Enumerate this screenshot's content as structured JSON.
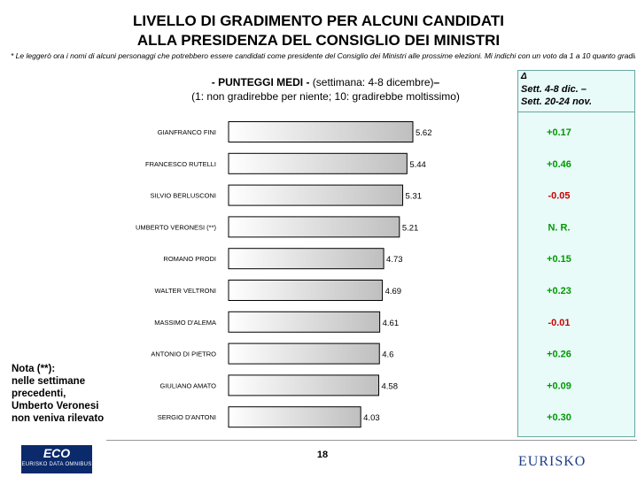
{
  "header": {
    "title_line1": "LIVELLO DI GRADIMENTO PER ALCUNI CANDIDATI",
    "title_line2": "ALLA PRESIDENZA DEL CONSIGLIO DEI MINISTRI",
    "footnote": "* Le leggerò ora i nomi di alcuni personaggi che potrebbero essere candidati come presidente del Consiglio dei Ministri alle prossime elezioni. Mi indichi con un voto da 1 a 10 quanto gradirebbe ciascuno"
  },
  "subtitle": {
    "bold_part": "- PUNTEGGI MEDI -",
    "date_part": " (settimana: 4-8 dicembre)",
    "dash": "–",
    "line2": "(1: non gradirebbe per niente; 10: gradirebbe moltissimo)"
  },
  "delta_header": {
    "symbol": "Δ",
    "line1": "Sett. 4-8 dic. –",
    "line2": "Sett. 20-24 nov."
  },
  "note": {
    "line1": "Nota (**):",
    "line2": "nelle settimane",
    "line3": "precedenti,",
    "line4": "Umberto Veronesi",
    "line5": "non veniva rilevato"
  },
  "page_number": "18",
  "logos": {
    "left_big": "ECO",
    "left_small": "EURISKO DATA OMNIBUS",
    "right": "EURISKO"
  },
  "colors": {
    "positive": "#009900",
    "negative": "#cc0000",
    "bar_fill_light": "#ffffff",
    "bar_fill_dark": "#bfbfbf"
  },
  "chart_data": {
    "type": "bar",
    "orientation": "horizontal",
    "categories": [
      "GIANFRANCO FINI",
      "FRANCESCO RUTELLI",
      "SILVIO BERLUSCONI",
      "UMBERTO VERONESI (**)",
      "ROMANO PRODI",
      "WALTER VELTRONI",
      "MASSIMO D'ALEMA",
      "ANTONIO DI PIETRO",
      "GIULIANO AMATO",
      "SERGIO D'ANTONI"
    ],
    "values": [
      5.62,
      5.44,
      5.31,
      5.21,
      4.73,
      4.69,
      4.61,
      4.6,
      4.58,
      4.03
    ],
    "value_labels": [
      "5.62",
      "5.44",
      "5.31",
      "5.21",
      "4.73",
      "4.69",
      "4.61",
      "4.6",
      "4.58",
      "4.03"
    ],
    "delta_labels": [
      "+0.17",
      "+0.46",
      "-0.05",
      "N. R.",
      "+0.15",
      "+0.23",
      "-0.01",
      "+0.26",
      "+0.09",
      "+0.30"
    ],
    "delta_sign": [
      "pos",
      "pos",
      "neg",
      "pos",
      "pos",
      "pos",
      "neg",
      "pos",
      "pos",
      "pos"
    ],
    "xlim": [
      0,
      5.62
    ],
    "grid": false,
    "legend": "none"
  }
}
